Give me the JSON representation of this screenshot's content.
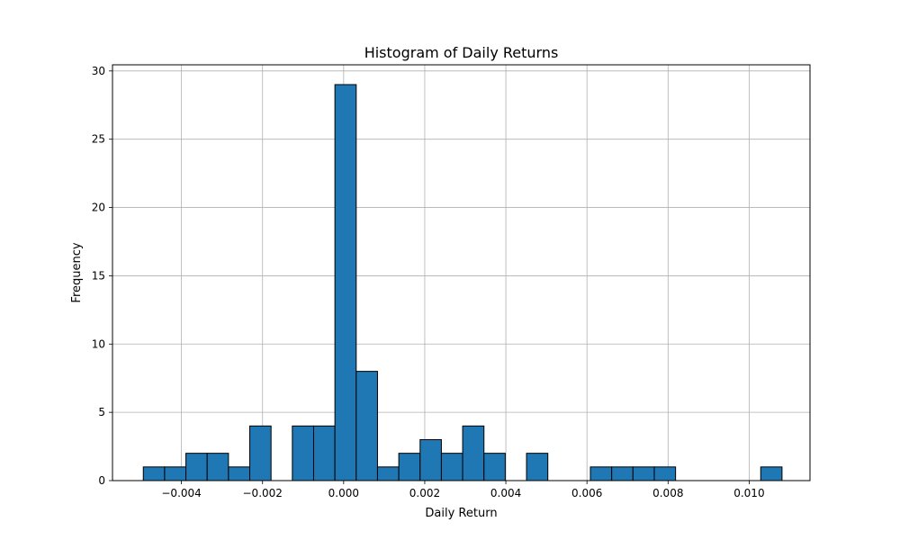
{
  "chart_data": {
    "type": "histogram",
    "title": "Histogram of Daily Returns",
    "xlabel": "Daily Return",
    "ylabel": "Frequency",
    "xlim": [
      -0.0057,
      0.0115
    ],
    "ylim": [
      0,
      30.45
    ],
    "xticks": [
      -0.004,
      -0.002,
      0.0,
      0.002,
      0.004,
      0.006,
      0.008,
      0.01
    ],
    "xtick_labels": [
      "−0.004",
      "−0.002",
      "0.000",
      "0.002",
      "0.004",
      "0.006",
      "0.008",
      "0.010"
    ],
    "yticks": [
      0,
      5,
      10,
      15,
      20,
      25,
      30
    ],
    "ytick_labels": [
      "0",
      "5",
      "10",
      "15",
      "20",
      "25",
      "30"
    ],
    "grid": true,
    "bar_color": "#1f77b4",
    "edge_color": "#000000",
    "bin_start": -0.00494,
    "bin_width": 0.000525,
    "counts": [
      1,
      1,
      2,
      2,
      1,
      4,
      0,
      4,
      4,
      29,
      8,
      1,
      2,
      3,
      2,
      4,
      2,
      0,
      2,
      0,
      0,
      1,
      1,
      1,
      1,
      0,
      0,
      0,
      0,
      1
    ]
  }
}
